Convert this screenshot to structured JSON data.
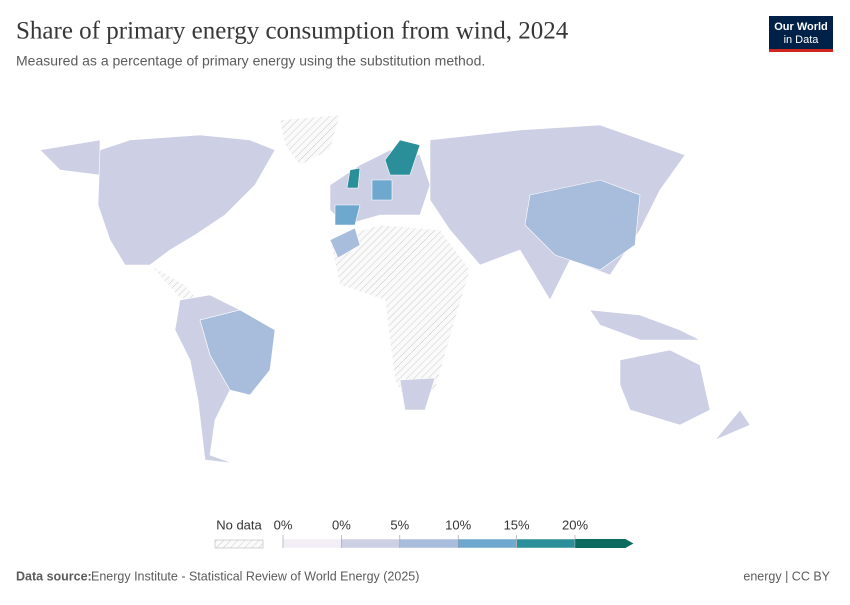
{
  "header": {
    "title": "Share of primary energy consumption from wind, 2024",
    "subtitle": "Measured as a percentage of primary energy using the substitution method.",
    "logo": [
      "Our World",
      "in Data"
    ]
  },
  "legend": {
    "no_data": "No data",
    "ticks": [
      "0%",
      "0%",
      "5%",
      "10%",
      "15%",
      "20%"
    ],
    "colors": [
      "#f3eef6",
      "#cdcfe4",
      "#a8bcdb",
      "#6ea8cf",
      "#2a8f99",
      "#0b6b5f"
    ]
  },
  "footer": {
    "source_label": "Data source:",
    "source": "Energy Institute - Statistical Review of World Energy (2025)",
    "license": "energy | CC BY"
  }
}
